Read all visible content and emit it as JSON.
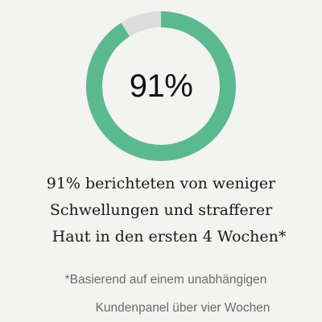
{
  "progress": {
    "percent_label": "91%",
    "fraction": 0.91,
    "fill_color": "#5bb98f",
    "track_color": "#dcdcdc"
  },
  "claim": {
    "line1": "91% berichteten von weniger",
    "line2": "Schwellungen und strafferer",
    "line3": "Haut in den ersten 4 Wochen*"
  },
  "footnote": {
    "line1": "*Basierend auf einem unabhängigen",
    "line2": "Kundenpanel über vier Wochen"
  }
}
